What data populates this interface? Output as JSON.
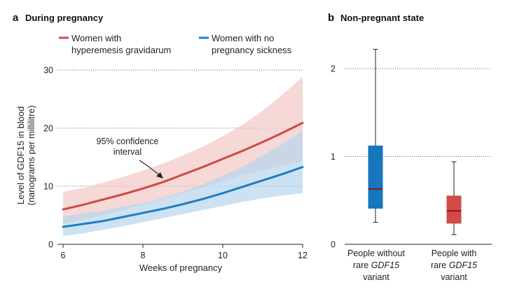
{
  "colors": {
    "red": "#cc4a44",
    "red_band": "#f2c7c6",
    "blue": "#1f7cc0",
    "blue_band": "#b7d6ec",
    "box_red": "#d04a48",
    "box_blue": "#1876bd",
    "median": "#8a1616"
  },
  "chart_data": [
    {
      "panel": "a",
      "type": "line",
      "title": "During pregnancy",
      "xlabel": "Weeks of pregnancy",
      "ylabel_line1": "Level of GDF15 in blood",
      "ylabel_line2": "(nanograms per millilitre)",
      "xlim": [
        6,
        12
      ],
      "ylim": [
        0,
        30
      ],
      "xticks": [
        "6",
        "8",
        "10",
        "12"
      ],
      "yticks": [
        "0",
        "10",
        "20",
        "30"
      ],
      "grid": true,
      "annotation_line1": "95% confidence",
      "annotation_line2": "interval",
      "series": [
        {
          "name_line1": "Women with",
          "name_line2": "hyperemesis gravidarum",
          "color": "red",
          "x": [
            6,
            6.5,
            7,
            7.5,
            8,
            8.5,
            9,
            9.5,
            10,
            10.5,
            11,
            11.5,
            12
          ],
          "values": [
            6.0,
            6.8,
            7.7,
            8.6,
            9.6,
            10.7,
            12.0,
            13.3,
            14.7,
            16.1,
            17.6,
            19.2,
            20.9
          ],
          "lower": [
            3.5,
            4.2,
            5.0,
            5.9,
            6.9,
            7.8,
            8.8,
            9.8,
            10.9,
            11.9,
            12.7,
            13.5,
            14.3
          ],
          "upper": [
            9.0,
            9.7,
            10.6,
            11.6,
            12.7,
            13.9,
            15.3,
            16.8,
            18.6,
            20.6,
            23.0,
            25.8,
            28.8
          ]
        },
        {
          "name_line1": "Women with no",
          "name_line2": "pregnancy sickness",
          "color": "blue",
          "x": [
            6,
            6.5,
            7,
            7.5,
            8,
            8.5,
            9,
            9.5,
            10,
            10.5,
            11,
            11.5,
            12
          ],
          "values": [
            3.0,
            3.5,
            4.0,
            4.7,
            5.4,
            6.1,
            6.9,
            7.8,
            8.8,
            9.9,
            11.0,
            12.1,
            13.3
          ],
          "lower": [
            1.4,
            1.9,
            2.5,
            3.1,
            3.8,
            4.5,
            5.2,
            5.9,
            6.6,
            7.3,
            7.9,
            8.4,
            8.8
          ],
          "upper": [
            4.8,
            5.3,
            5.8,
            6.5,
            7.1,
            8.0,
            9.0,
            10.3,
            11.8,
            13.4,
            15.3,
            17.3,
            19.5
          ]
        }
      ]
    },
    {
      "panel": "b",
      "type": "boxplot",
      "title": "Non-pregnant state",
      "ylim": [
        0,
        2.2
      ],
      "yticks": [
        "0",
        "1",
        "2"
      ],
      "grid": true,
      "boxes": [
        {
          "label_line1": "People without",
          "label_pre": "rare ",
          "label_italic": "GDF15",
          "label_line3": "variant",
          "color": "box_blue",
          "min": 0.25,
          "q1": 0.41,
          "median": 0.63,
          "q3": 1.12,
          "max": 2.22
        },
        {
          "label_line1": "People with",
          "label_pre": "rare ",
          "label_italic": "GDF15",
          "label_line3": "variant",
          "color": "box_red",
          "min": 0.11,
          "q1": 0.24,
          "median": 0.38,
          "q3": 0.55,
          "max": 0.94
        }
      ]
    }
  ]
}
